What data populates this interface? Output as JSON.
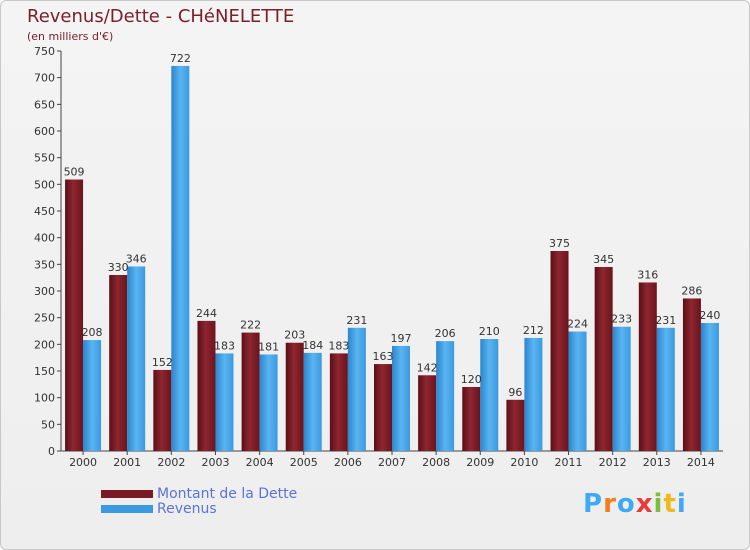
{
  "header": {
    "title": "Revenus/Dette - CHéNELETTE",
    "subtitle": "(en milliers d'€)"
  },
  "legend": {
    "dette_label": "Montant de la Dette",
    "revenus_label": "Revenus"
  },
  "brand": {
    "logo_text": "Proxiti",
    "letters": [
      "P",
      "r",
      "o",
      "x",
      "i",
      "t",
      "i"
    ],
    "letter_colors": [
      "#3fa9f5",
      "#f07e1c",
      "#3fa9f5",
      "#e83a3a",
      "#7dbb42",
      "#f0b81c",
      "#3fa9f5"
    ]
  },
  "colors": {
    "dette": "#7a1a22",
    "revenus": "#3a9ae0"
  },
  "chart_data": {
    "type": "bar",
    "categories": [
      "2000",
      "2001",
      "2002",
      "2003",
      "2004",
      "2005",
      "2006",
      "2007",
      "2008",
      "2009",
      "2010",
      "2011",
      "2012",
      "2013",
      "2014"
    ],
    "series": [
      {
        "name": "Montant de la Dette",
        "values": [
          509,
          330,
          152,
          244,
          222,
          203,
          183,
          163,
          142,
          120,
          96,
          375,
          345,
          316,
          286
        ]
      },
      {
        "name": "Revenus",
        "values": [
          208,
          346,
          722,
          183,
          181,
          184,
          231,
          197,
          206,
          210,
          212,
          224,
          233,
          231,
          240
        ]
      }
    ],
    "ylim": [
      0,
      750
    ],
    "yticks": [
      0,
      50,
      100,
      150,
      200,
      250,
      300,
      350,
      400,
      450,
      500,
      550,
      600,
      650,
      700,
      750
    ],
    "grid": false,
    "legend_position": "bottom-left"
  }
}
